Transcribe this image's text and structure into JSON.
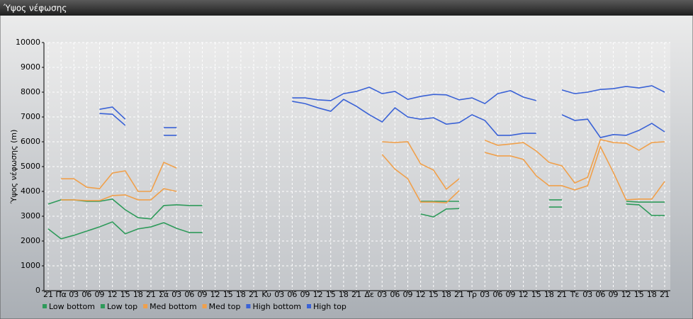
{
  "window": {
    "title": "Ύψος νέφωσης"
  },
  "chart_data": {
    "type": "line",
    "y_label": "Ύψος νέφωσης (m)",
    "categories": [
      "21",
      "Πα",
      "03",
      "06",
      "09",
      "12",
      "15",
      "18",
      "21",
      "Σά",
      "03",
      "06",
      "09",
      "12",
      "15",
      "18",
      "21",
      "Κυ",
      "03",
      "06",
      "09",
      "12",
      "15",
      "18",
      "21",
      "Δε",
      "03",
      "06",
      "09",
      "12",
      "15",
      "18",
      "21",
      "Τρ",
      "03",
      "06",
      "09",
      "12",
      "15",
      "18",
      "21",
      "Τε",
      "03",
      "06",
      "09",
      "12",
      "15",
      "18",
      "21"
    ],
    "ylim": [
      0,
      10000
    ],
    "yticks": [
      0,
      1000,
      2000,
      3000,
      4000,
      5000,
      6000,
      7000,
      8000,
      9000,
      10000
    ],
    "grid": true,
    "series": [
      {
        "name": "Low bottom",
        "color": "#2e9a5a",
        "values": [
          2490,
          2090,
          2230,
          2400,
          2570,
          2770,
          2290,
          2490,
          2570,
          2740,
          2510,
          2340,
          2340,
          null,
          null,
          null,
          null,
          null,
          null,
          null,
          null,
          null,
          null,
          null,
          null,
          null,
          null,
          null,
          null,
          3090,
          2970,
          3290,
          3310,
          null,
          null,
          null,
          null,
          null,
          null,
          3370,
          3370,
          null,
          null,
          null,
          null,
          3490,
          3460,
          3030,
          3030
        ]
      },
      {
        "name": "Low top",
        "color": "#2e9a5a",
        "values": [
          3490,
          3660,
          3660,
          3600,
          3600,
          3690,
          3260,
          2940,
          2890,
          3430,
          3460,
          3430,
          3430,
          null,
          null,
          null,
          null,
          null,
          null,
          null,
          null,
          null,
          null,
          null,
          null,
          null,
          null,
          null,
          null,
          3600,
          3600,
          3600,
          3600,
          null,
          null,
          null,
          null,
          null,
          null,
          3660,
          3660,
          null,
          null,
          null,
          null,
          3600,
          3570,
          3570,
          3570
        ]
      },
      {
        "name": "Med bottom",
        "color": "#f0a04b",
        "values": [
          null,
          3660,
          3660,
          3630,
          3630,
          3830,
          3860,
          3660,
          3660,
          4110,
          4000,
          null,
          null,
          null,
          null,
          null,
          null,
          null,
          null,
          null,
          null,
          null,
          null,
          null,
          null,
          null,
          5490,
          4900,
          4510,
          3570,
          3570,
          3540,
          4030,
          null,
          5570,
          5430,
          5430,
          5290,
          4630,
          4230,
          4230,
          4060,
          4230,
          5800,
          4770,
          3660,
          3690,
          3690,
          4400
        ]
      },
      {
        "name": "Med top",
        "color": "#f0a04b",
        "values": [
          null,
          4510,
          4510,
          4170,
          4110,
          4740,
          4830,
          4000,
          4000,
          5170,
          4940,
          null,
          null,
          null,
          null,
          null,
          null,
          null,
          null,
          null,
          null,
          null,
          null,
          null,
          null,
          null,
          6000,
          5970,
          6000,
          5110,
          4860,
          4090,
          4510,
          null,
          6060,
          5860,
          5910,
          5970,
          5630,
          5170,
          5030,
          4340,
          4570,
          6090,
          5970,
          5940,
          5660,
          5970,
          6000
        ]
      },
      {
        "name": "High bottom",
        "color": "#3a62d6",
        "values": [
          null,
          null,
          null,
          null,
          7140,
          7110,
          6660,
          null,
          null,
          6260,
          6260,
          null,
          null,
          null,
          null,
          null,
          null,
          null,
          null,
          7630,
          7540,
          7370,
          7230,
          7710,
          7430,
          7090,
          6800,
          7370,
          7000,
          6910,
          6970,
          6710,
          6770,
          7090,
          6860,
          6260,
          6260,
          6340,
          6340,
          null,
          7090,
          6860,
          6910,
          6170,
          6290,
          6260,
          6460,
          6740,
          6400
        ]
      },
      {
        "name": "High top",
        "color": "#3a62d6",
        "values": [
          null,
          null,
          null,
          null,
          7310,
          7400,
          6910,
          null,
          null,
          6570,
          6570,
          null,
          null,
          null,
          null,
          null,
          null,
          null,
          null,
          7770,
          7770,
          7690,
          7660,
          7940,
          8030,
          8200,
          7940,
          8030,
          7710,
          7830,
          7910,
          7890,
          7690,
          7770,
          7540,
          7940,
          8060,
          7800,
          7660,
          null,
          8090,
          7940,
          8000,
          8110,
          8140,
          8230,
          8170,
          8260,
          8000
        ]
      }
    ]
  }
}
